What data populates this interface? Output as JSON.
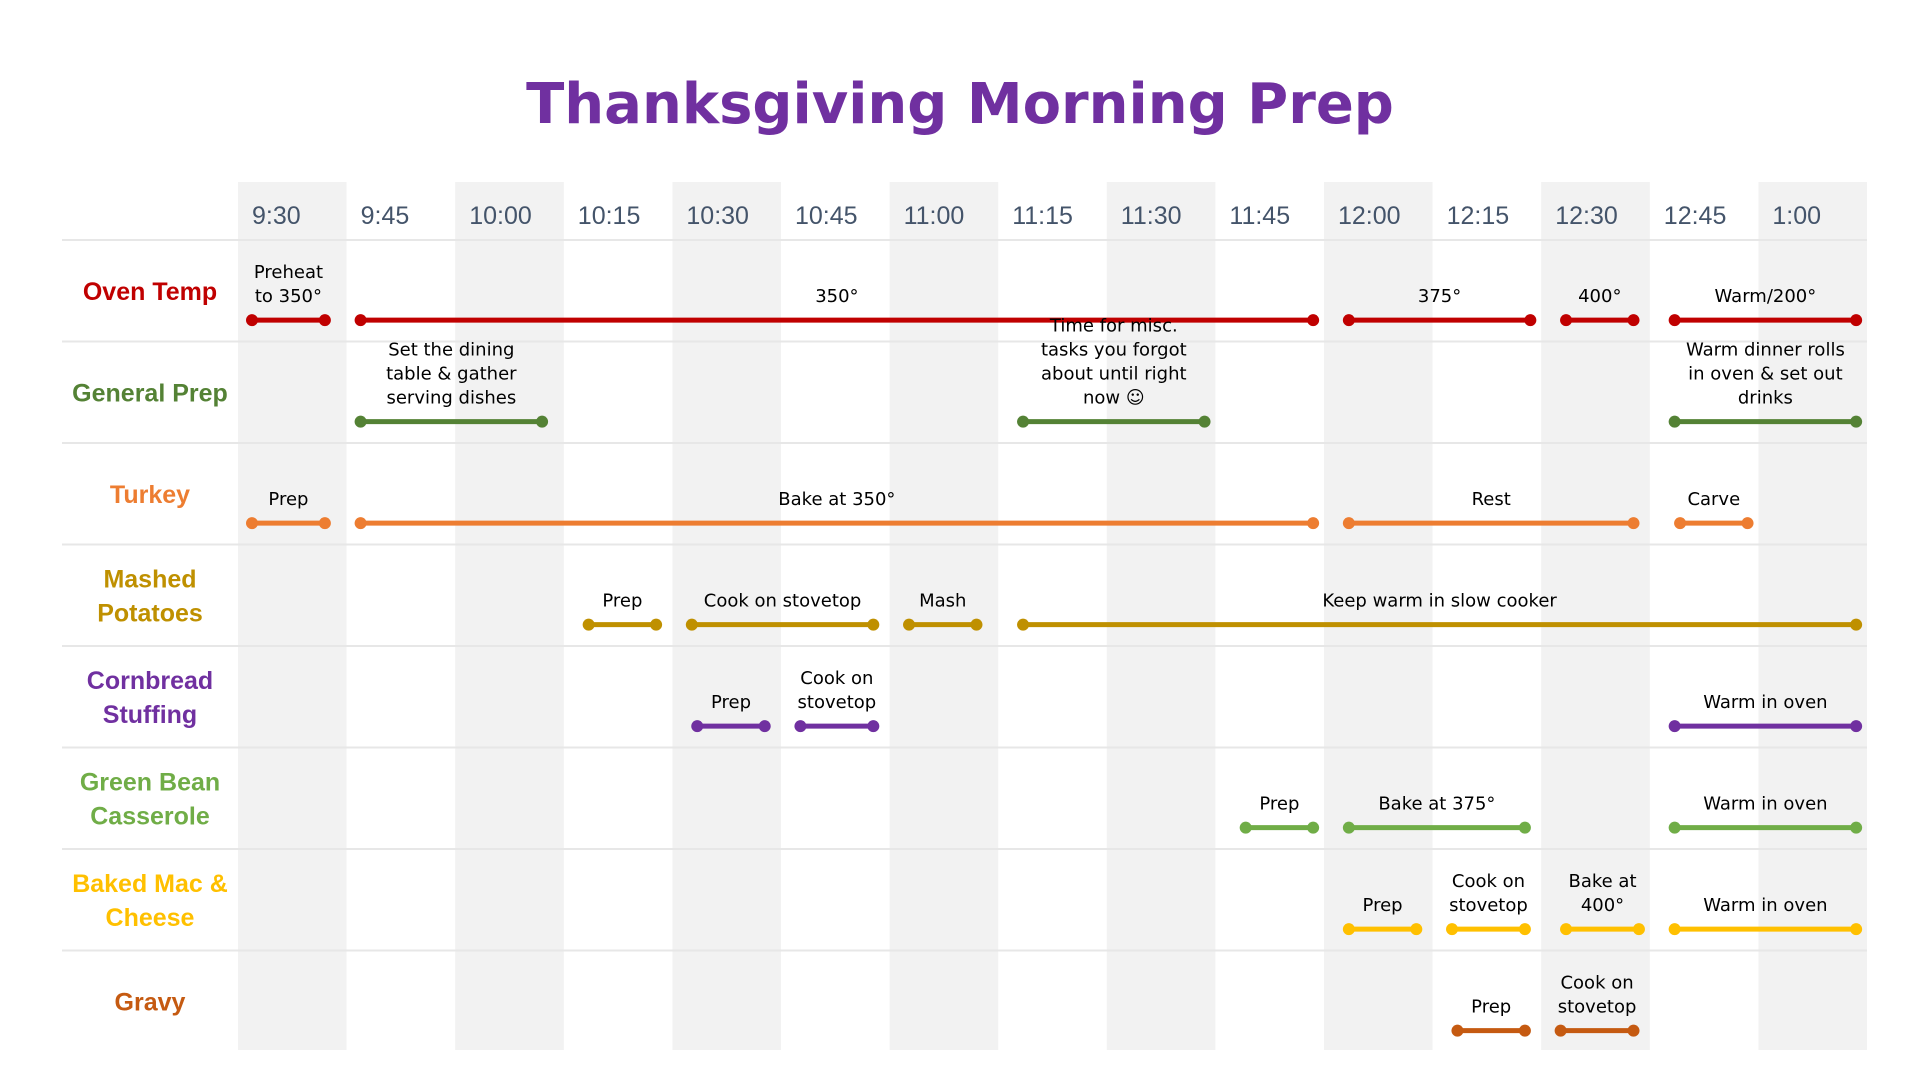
{
  "title": "Thanksgiving Morning Prep",
  "colors": {
    "title": "#7030A0",
    "shade": "#F2F2F2",
    "divider": "#E7E7E7",
    "time_text": "#44546A",
    "label_text": "#000000"
  },
  "time_slots": [
    "9:30",
    "9:45",
    "10:00",
    "10:15",
    "10:30",
    "10:45",
    "11:00",
    "11:15",
    "11:30",
    "11:45",
    "12:00",
    "12:15",
    "12:30",
    "12:45",
    "1:00"
  ],
  "rows": [
    {
      "name": "Oven Temp",
      "color": "#C00000",
      "tasks": [
        {
          "label": "Preheat to 350°",
          "start": 0,
          "end": 0.8
        },
        {
          "label": "350°",
          "start": 1,
          "end": 9.9
        },
        {
          "label": "375°",
          "start": 10.1,
          "end": 11.9
        },
        {
          "label": "400°",
          "start": 12.1,
          "end": 12.85
        },
        {
          "label": "Warm/200°",
          "start": 13.1,
          "end": 14.9
        }
      ]
    },
    {
      "name": "General Prep",
      "color": "#548235",
      "tasks": [
        {
          "label": "Set the dining table & gather serving dishes",
          "start": 1,
          "end": 2.8
        },
        {
          "label": "Time for misc. tasks you forgot about until right now ☺",
          "start": 7.1,
          "end": 8.9
        },
        {
          "label": "Warm dinner rolls in oven & set out drinks",
          "start": 13.1,
          "end": 14.9
        }
      ]
    },
    {
      "name": "Turkey",
      "color": "#ED7D31",
      "tasks": [
        {
          "label": "Prep",
          "start": 0,
          "end": 0.8
        },
        {
          "label": "Bake at 350°",
          "start": 1,
          "end": 9.9
        },
        {
          "label": "Rest",
          "start": 10.1,
          "end": 12.85
        },
        {
          "label": "Carve",
          "start": 13.15,
          "end": 13.9
        }
      ]
    },
    {
      "name": "Mashed Potatoes",
      "color": "#BF9000",
      "tasks": [
        {
          "label": "Prep",
          "start": 3.1,
          "end": 3.85
        },
        {
          "label": "Cook on stovetop",
          "start": 4.05,
          "end": 5.85
        },
        {
          "label": "Mash",
          "start": 6.05,
          "end": 6.8
        },
        {
          "label": "Keep warm in slow cooker",
          "start": 7.1,
          "end": 14.9
        }
      ]
    },
    {
      "name": "Cornbread Stuffing",
      "color": "#7030A0",
      "tasks": [
        {
          "label": "Prep",
          "start": 4.1,
          "end": 4.85
        },
        {
          "label": "Cook on stovetop",
          "start": 5.05,
          "end": 5.85
        },
        {
          "label": "Warm in oven",
          "start": 13.1,
          "end": 14.9
        }
      ]
    },
    {
      "name": "Green Bean Casserole",
      "color": "#70AD47",
      "tasks": [
        {
          "label": "Prep",
          "start": 9.15,
          "end": 9.9
        },
        {
          "label": "Bake at 375°",
          "start": 10.1,
          "end": 11.85
        },
        {
          "label": "Warm in oven",
          "start": 13.1,
          "end": 14.9
        }
      ]
    },
    {
      "name": "Baked Mac & Cheese",
      "color": "#FFC000",
      "tasks": [
        {
          "label": "Prep",
          "start": 10.1,
          "end": 10.85
        },
        {
          "label": "Cook on stovetop",
          "start": 11.05,
          "end": 11.85
        },
        {
          "label": "Bake at 400°",
          "start": 12.1,
          "end": 12.9
        },
        {
          "label": "Warm in oven",
          "start": 13.1,
          "end": 14.9
        }
      ]
    },
    {
      "name": "Gravy",
      "color": "#C55A11",
      "tasks": [
        {
          "label": "Prep",
          "start": 11.1,
          "end": 11.85
        },
        {
          "label": "Cook on stovetop",
          "start": 12.05,
          "end": 12.85
        }
      ]
    }
  ]
}
